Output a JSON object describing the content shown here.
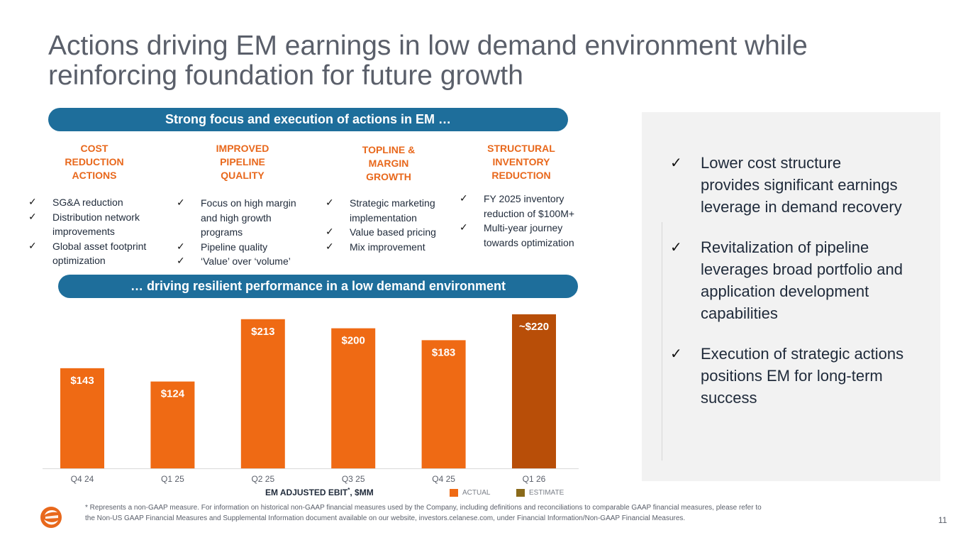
{
  "title": {
    "line1": "Actions driving EM earnings in low demand environment while",
    "line2": "reinforcing foundation for future growth"
  },
  "top_banner": "Strong focus and execution of actions in EM …",
  "mid_banner": "… driving resilient performance in a low demand environment",
  "categories": [
    {
      "heading": [
        "COST",
        "REDUCTION",
        "ACTIONS"
      ],
      "bullets": [
        [
          "SG&A reduction"
        ],
        [
          "Distribution network",
          "improvements"
        ],
        [
          "Global asset footprint",
          "optimization"
        ]
      ]
    },
    {
      "heading": [
        "IMPROVED",
        "PIPELINE",
        "QUALITY"
      ],
      "bullets": [
        [
          "Focus on high margin",
          "and high growth",
          "programs"
        ],
        [
          "Pipeline quality"
        ],
        [
          "‘Value’ over ‘volume’"
        ]
      ]
    },
    {
      "heading": [
        "TOPLINE &",
        "MARGIN",
        "GROWTH"
      ],
      "bullets": [
        [
          "Strategic marketing",
          "implementation"
        ],
        [
          "Value based pricing"
        ],
        [
          "Mix improvement"
        ]
      ]
    },
    {
      "heading": [
        "STRUCTURAL",
        "INVENTORY",
        "REDUCTION"
      ],
      "bullets": [
        [
          "FY 2025 inventory",
          "reduction of $100M+"
        ],
        [
          "Multi-year journey",
          "towards optimization"
        ]
      ]
    }
  ],
  "right_panel": [
    [
      "Lower cost structure",
      "provides significant earnings",
      "leverage in demand recovery"
    ],
    [
      "Revitalization of pipeline",
      "leverages broad portfolio and",
      "application development",
      "capabilities"
    ],
    [
      "Execution of strategic actions",
      "positions EM for long-term",
      "success"
    ]
  ],
  "chart_data": {
    "type": "bar",
    "categories": [
      "Q4 24",
      "Q1 25",
      "Q2 25",
      "Q3 25",
      "Q4 25",
      "Q1 26"
    ],
    "values": [
      143,
      124,
      213,
      200,
      183,
      220
    ],
    "data_labels": [
      "$143",
      "$124",
      "$213",
      "$200",
      "$183",
      "~$220"
    ],
    "kinds": [
      "actual",
      "actual",
      "actual",
      "actual",
      "actual",
      "estimate"
    ],
    "xlabel": "EM ADJUSTED EBIT",
    "xlabel_sup": "*",
    "xlabel_suffix": ", $MM",
    "ylim": [
      0,
      230
    ],
    "legend": [
      {
        "label": "ACTUAL",
        "color": "#ef6a14"
      },
      {
        "label": "ESTIMATE",
        "color": "#8a6a1a"
      }
    ],
    "colors": {
      "actual": "#ef6a14",
      "estimate": "#b84e08"
    }
  },
  "footnote": {
    "line1": "* Represents a non-GAAP measure. For information on historical non-GAAP financial measures used by the Company, including definitions and reconciliations to comparable GAAP financial measures, please refer to",
    "line2": "the Non-US GAAP Financial Measures and Supplemental Information document available on our website, investors.celanese.com, under Financial Information/Non-GAAP Financial Measures."
  },
  "page_number": "11",
  "colors": {
    "accent": "#e8681c",
    "banner": "#1e6e9b",
    "panel": "#f2f2f2"
  }
}
